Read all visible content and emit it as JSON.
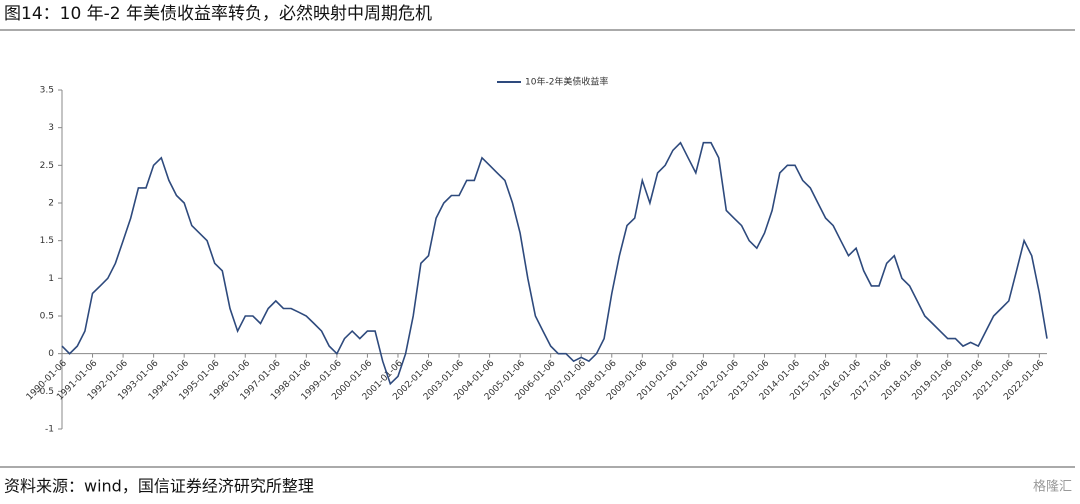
{
  "title": "图14：10 年-2 年美债收益率转负，必然映射中周期危机",
  "source": "资料来源：wind，国信证券经济研究所整理",
  "watermark": "格隆汇",
  "chart_data": {
    "type": "line",
    "categories": [
      "1990-01-06",
      null,
      null,
      null,
      "1991-01-06",
      null,
      null,
      null,
      "1992-01-06",
      null,
      null,
      null,
      "1993-01-06",
      null,
      null,
      null,
      "1994-01-06",
      null,
      null,
      null,
      "1995-01-06",
      null,
      null,
      null,
      "1996-01-06",
      null,
      null,
      null,
      "1997-01-06",
      null,
      null,
      null,
      "1998-01-06",
      null,
      null,
      null,
      "1999-01-06",
      null,
      null,
      null,
      "2000-01-06",
      null,
      null,
      null,
      "2001-01-06",
      null,
      null,
      null,
      "2002-01-06",
      null,
      null,
      null,
      "2003-01-06",
      null,
      null,
      null,
      "2004-01-06",
      null,
      null,
      null,
      "2005-01-06",
      null,
      null,
      null,
      "2006-01-06",
      null,
      null,
      null,
      "2007-01-06",
      null,
      null,
      null,
      "2008-01-06",
      null,
      null,
      null,
      "2009-01-06",
      null,
      null,
      null,
      "2010-01-06",
      null,
      null,
      null,
      "2011-01-06",
      null,
      null,
      null,
      "2012-01-06",
      null,
      null,
      null,
      "2013-01-06",
      null,
      null,
      null,
      "2014-01-06",
      null,
      null,
      null,
      "2015-01-06",
      null,
      null,
      null,
      "2016-01-06",
      null,
      null,
      null,
      "2017-01-06",
      null,
      null,
      null,
      "2018-01-06",
      null,
      null,
      null,
      "2019-01-06",
      null,
      null,
      null,
      "2020-01-06",
      null,
      null,
      null,
      "2021-01-06",
      null,
      null,
      null,
      "2022-01-06",
      null
    ],
    "series": [
      {
        "name": "10年-2年美债收益率",
        "color": "#2e4a7d",
        "values": [
          0.1,
          0.0,
          0.1,
          0.3,
          0.8,
          0.9,
          1.0,
          1.2,
          1.5,
          1.8,
          2.2,
          2.2,
          2.5,
          2.6,
          2.3,
          2.1,
          2.0,
          1.7,
          1.6,
          1.5,
          1.2,
          1.1,
          0.6,
          0.3,
          0.5,
          0.5,
          0.4,
          0.6,
          0.7,
          0.6,
          0.6,
          0.55,
          0.5,
          0.4,
          0.3,
          0.1,
          0.0,
          0.2,
          0.3,
          0.2,
          0.3,
          0.3,
          -0.1,
          -0.4,
          -0.3,
          0.0,
          0.5,
          1.2,
          1.3,
          1.8,
          2.0,
          2.1,
          2.1,
          2.3,
          2.3,
          2.6,
          2.5,
          2.4,
          2.3,
          2.0,
          1.6,
          1.0,
          0.5,
          0.3,
          0.1,
          0.0,
          0.0,
          -0.1,
          -0.05,
          -0.1,
          0.0,
          0.2,
          0.8,
          1.3,
          1.7,
          1.8,
          2.3,
          2.0,
          2.4,
          2.5,
          2.7,
          2.8,
          2.6,
          2.4,
          2.8,
          2.8,
          2.6,
          1.9,
          1.8,
          1.7,
          1.5,
          1.4,
          1.6,
          1.9,
          2.4,
          2.5,
          2.5,
          2.3,
          2.2,
          2.0,
          1.8,
          1.7,
          1.5,
          1.3,
          1.4,
          1.1,
          0.9,
          0.9,
          1.2,
          1.3,
          1.0,
          0.9,
          0.7,
          0.5,
          0.4,
          0.3,
          0.2,
          0.2,
          0.1,
          0.15,
          0.1,
          0.3,
          0.5,
          0.6,
          0.7,
          1.1,
          1.5,
          1.3,
          0.8,
          0.2
        ]
      }
    ],
    "ylim": [
      -1,
      3.5
    ],
    "yticks": [
      -1,
      -0.5,
      0,
      0.5,
      1,
      1.5,
      2,
      2.5,
      3,
      3.5
    ],
    "legend": "top"
  }
}
